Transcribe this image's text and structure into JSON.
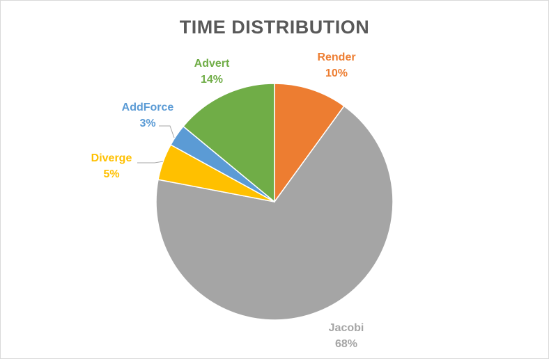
{
  "chart_data": {
    "type": "pie",
    "title": "TIME DISTRIBUTION",
    "start_angle_deg": 0,
    "direction": "clockwise",
    "slices": [
      {
        "label": "Render",
        "value": 10,
        "percent_label": "10%",
        "color": "#ED7D31"
      },
      {
        "label": "Jacobi",
        "value": 68,
        "percent_label": "68%",
        "color": "#A5A5A5"
      },
      {
        "label": "Diverge",
        "value": 5,
        "percent_label": "5%",
        "color": "#FFC000"
      },
      {
        "label": "AddForce",
        "value": 3,
        "percent_label": "3%",
        "color": "#5B9BD5"
      },
      {
        "label": "Advert",
        "value": 14,
        "percent_label": "14%",
        "color": "#70AD47"
      }
    ],
    "label_text_colors": {
      "Render": "#ED7D31",
      "Jacobi": "#A5A5A5",
      "Diverge": "#FFC000",
      "AddForce": "#5B9BD5",
      "Advert": "#70AD47"
    },
    "legend": "none"
  }
}
